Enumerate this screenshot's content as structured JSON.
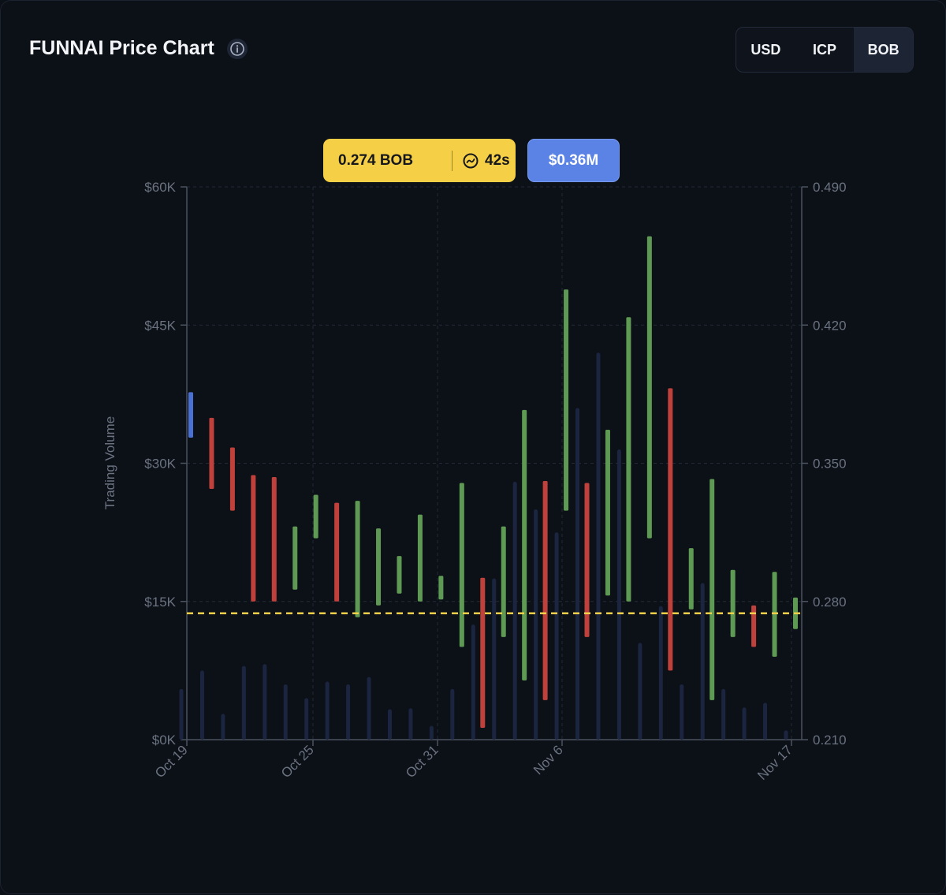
{
  "header": {
    "title": "FUNNAI Price Chart",
    "currency_options": [
      "USD",
      "ICP",
      "BOB"
    ],
    "active_currency": "BOB"
  },
  "badges": {
    "price": "0.274 BOB",
    "refresh": "42s",
    "volume_total": "$0.36M"
  },
  "colors": {
    "up": "#5e9a53",
    "down": "#c0413b",
    "first": "#4a70d4",
    "volume": "#1b2540",
    "current_price_line": "#f5cf45",
    "grid": "#222a36",
    "axis": "#4b5260"
  },
  "chart_data": {
    "type": "candlestick",
    "title": "FUNNAI Price Chart",
    "ylabel_left": "Trading Volume",
    "left_axis": {
      "range": [
        0,
        60000
      ],
      "ticks": [
        "$0K",
        "$15K",
        "$30K",
        "$45K",
        "$60K"
      ]
    },
    "right_axis": {
      "range": [
        0.21,
        0.49
      ],
      "ticks": [
        "0.210",
        "0.280",
        "0.350",
        "0.420",
        "0.490"
      ]
    },
    "x_ticks": [
      "Oct 19",
      "Oct 25",
      "Oct 31",
      "Nov 6",
      "Nov 17"
    ],
    "current_price": 0.274,
    "dates": [
      "Oct 19",
      "Oct 20",
      "Oct 21",
      "Oct 22",
      "Oct 23",
      "Oct 24",
      "Oct 25",
      "Oct 26",
      "Oct 27",
      "Oct 28",
      "Oct 29",
      "Oct 30",
      "Oct 31",
      "Nov 1",
      "Nov 2",
      "Nov 3",
      "Nov 4",
      "Nov 5",
      "Nov 6",
      "Nov 7",
      "Nov 8",
      "Nov 9",
      "Nov 10",
      "Nov 11",
      "Nov 12",
      "Nov 13",
      "Nov 14",
      "Nov 15",
      "Nov 16",
      "Nov 17"
    ],
    "candles": [
      {
        "open": 0.386,
        "close": 0.363,
        "dir": "first"
      },
      {
        "open": 0.373,
        "close": 0.337,
        "dir": "down"
      },
      {
        "open": 0.358,
        "close": 0.326,
        "dir": "down"
      },
      {
        "open": 0.344,
        "close": 0.28,
        "dir": "down"
      },
      {
        "open": 0.343,
        "close": 0.28,
        "dir": "down"
      },
      {
        "open": 0.286,
        "close": 0.318,
        "dir": "up"
      },
      {
        "open": 0.312,
        "close": 0.334,
        "dir": "up"
      },
      {
        "open": 0.33,
        "close": 0.28,
        "dir": "down"
      },
      {
        "open": 0.272,
        "close": 0.331,
        "dir": "up"
      },
      {
        "open": 0.278,
        "close": 0.317,
        "dir": "up"
      },
      {
        "open": 0.284,
        "close": 0.303,
        "dir": "up"
      },
      {
        "open": 0.28,
        "close": 0.324,
        "dir": "up"
      },
      {
        "open": 0.281,
        "close": 0.293,
        "dir": "up"
      },
      {
        "open": 0.257,
        "close": 0.34,
        "dir": "up"
      },
      {
        "open": 0.292,
        "close": 0.216,
        "dir": "down"
      },
      {
        "open": 0.262,
        "close": 0.318,
        "dir": "up"
      },
      {
        "open": 0.24,
        "close": 0.377,
        "dir": "up"
      },
      {
        "open": 0.341,
        "close": 0.23,
        "dir": "down"
      },
      {
        "open": 0.326,
        "close": 0.438,
        "dir": "up"
      },
      {
        "open": 0.34,
        "close": 0.262,
        "dir": "down"
      },
      {
        "open": 0.283,
        "close": 0.367,
        "dir": "up"
      },
      {
        "open": 0.28,
        "close": 0.424,
        "dir": "up"
      },
      {
        "open": 0.312,
        "close": 0.465,
        "dir": "up"
      },
      {
        "open": 0.388,
        "close": 0.245,
        "dir": "down"
      },
      {
        "open": 0.276,
        "close": 0.307,
        "dir": "up"
      },
      {
        "open": 0.23,
        "close": 0.342,
        "dir": "up"
      },
      {
        "open": 0.262,
        "close": 0.296,
        "dir": "up"
      },
      {
        "open": 0.278,
        "close": 0.257,
        "dir": "down"
      },
      {
        "open": 0.252,
        "close": 0.295,
        "dir": "up"
      },
      {
        "open": 0.266,
        "close": 0.282,
        "dir": "up"
      }
    ],
    "volumes": [
      5500,
      7500,
      2800,
      8000,
      8200,
      6000,
      4500,
      6300,
      6000,
      6800,
      3300,
      3400,
      1500,
      5500,
      12500,
      17500,
      28000,
      25000,
      22500,
      36000,
      42000,
      31500,
      10500,
      14500,
      6000,
      17000,
      5500,
      3500,
      4000,
      1000
    ]
  }
}
